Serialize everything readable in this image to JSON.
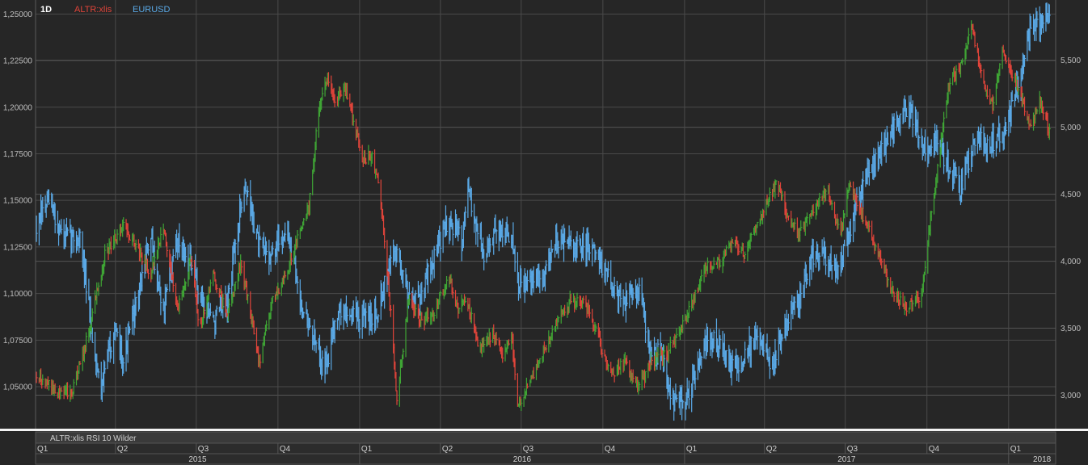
{
  "header": {
    "timeframe": "1D",
    "series_labels": [
      "ALTR:xlis",
      "EURUSD"
    ]
  },
  "indicator_panel": {
    "label": "ALTR:xlis RSI 10 Wilder"
  },
  "colors": {
    "background": "#262626",
    "grid": "#4a4a4a",
    "up": "#3fa535",
    "down": "#e0443a",
    "eurusd": "#5aa9e6",
    "altr_label": "#e0443a",
    "eurusd_label": "#5aa9e6"
  },
  "chart_data": {
    "type": "line",
    "style": "ohlc-bars",
    "timeframe": "1D",
    "x_quarters": [
      {
        "label": "Q1",
        "start": "2015-01-01"
      },
      {
        "label": "Q2",
        "start": "2015-04-01"
      },
      {
        "label": "Q3",
        "start": "2015-07-01"
      },
      {
        "label": "Q4",
        "start": "2015-10-01"
      },
      {
        "label": "Q1",
        "start": "2016-01-01"
      },
      {
        "label": "Q2",
        "start": "2016-04-01"
      },
      {
        "label": "Q3",
        "start": "2016-07-01"
      },
      {
        "label": "Q4",
        "start": "2016-10-01"
      },
      {
        "label": "Q1",
        "start": "2017-01-01"
      },
      {
        "label": "Q2",
        "start": "2017-04-01"
      },
      {
        "label": "Q3",
        "start": "2017-07-01"
      },
      {
        "label": "Q4",
        "start": "2017-10-01"
      },
      {
        "label": "Q1",
        "start": "2018-01-01"
      }
    ],
    "x_years": [
      {
        "label": "2015",
        "start": "2015-01-01",
        "end": "2016-01-01"
      },
      {
        "label": "2016",
        "start": "2016-01-01",
        "end": "2017-01-01"
      },
      {
        "label": "2017",
        "start": "2017-01-01",
        "end": "2018-01-01"
      },
      {
        "label": "2018",
        "start": "2018-01-01",
        "end": "2018-02-23"
      }
    ],
    "xlim": [
      "2015-01-01",
      "2018-02-23"
    ],
    "left_axis": {
      "series": "EURUSD",
      "ylim": [
        1.0275,
        1.2575
      ],
      "ticks": [
        1.05,
        1.075,
        1.1,
        1.125,
        1.15,
        1.175,
        1.2,
        1.225,
        1.25
      ],
      "tick_labels": [
        "1,05000",
        "1,07500",
        "1,10000",
        "1,12500",
        "1,15000",
        "1,17500",
        "1,20000",
        "1,22500",
        "1,25000"
      ]
    },
    "right_axis": {
      "series": "ALTR:xlis",
      "ylim": [
        2750,
        5950
      ],
      "ticks": [
        3000,
        3500,
        4000,
        4500,
        5000,
        5500
      ],
      "tick_labels": [
        "3,000",
        "3,500",
        "4,000",
        "4,500",
        "5,000",
        "5,500"
      ]
    },
    "grid": true,
    "series": [
      {
        "name": "ALTR:xlis",
        "axis": "right",
        "anchors": [
          [
            "2015-01-02",
            3150
          ],
          [
            "2015-01-20",
            3050
          ],
          [
            "2015-02-10",
            3000
          ],
          [
            "2015-03-01",
            3450
          ],
          [
            "2015-03-20",
            4050
          ],
          [
            "2015-04-10",
            4280
          ],
          [
            "2015-04-25",
            4100
          ],
          [
            "2015-05-10",
            3900
          ],
          [
            "2015-05-25",
            4250
          ],
          [
            "2015-06-10",
            3650
          ],
          [
            "2015-06-25",
            4000
          ],
          [
            "2015-07-05",
            3500
          ],
          [
            "2015-07-20",
            3900
          ],
          [
            "2015-08-05",
            3600
          ],
          [
            "2015-08-20",
            4000
          ],
          [
            "2015-09-10",
            3250
          ],
          [
            "2015-09-25",
            3700
          ],
          [
            "2015-10-10",
            3900
          ],
          [
            "2015-10-25",
            4200
          ],
          [
            "2015-11-05",
            4400
          ],
          [
            "2015-11-15",
            5100
          ],
          [
            "2015-11-25",
            5350
          ],
          [
            "2015-12-05",
            5200
          ],
          [
            "2015-12-15",
            5300
          ],
          [
            "2015-12-25",
            5050
          ],
          [
            "2016-01-05",
            4750
          ],
          [
            "2016-01-15",
            4800
          ],
          [
            "2016-01-25",
            4450
          ],
          [
            "2016-02-05",
            3600
          ],
          [
            "2016-02-12",
            2950
          ],
          [
            "2016-02-25",
            3700
          ],
          [
            "2016-03-10",
            3550
          ],
          [
            "2016-03-25",
            3600
          ],
          [
            "2016-04-10",
            3900
          ],
          [
            "2016-04-20",
            3650
          ],
          [
            "2016-05-01",
            3700
          ],
          [
            "2016-05-15",
            3350
          ],
          [
            "2016-05-30",
            3450
          ],
          [
            "2016-06-10",
            3300
          ],
          [
            "2016-06-20",
            3450
          ],
          [
            "2016-06-27",
            2920
          ],
          [
            "2016-07-10",
            3100
          ],
          [
            "2016-07-25",
            3300
          ],
          [
            "2016-08-10",
            3550
          ],
          [
            "2016-08-25",
            3700
          ],
          [
            "2016-09-10",
            3700
          ],
          [
            "2016-09-25",
            3450
          ],
          [
            "2016-10-10",
            3150
          ],
          [
            "2016-10-25",
            3250
          ],
          [
            "2016-11-10",
            3050
          ],
          [
            "2016-11-25",
            3250
          ],
          [
            "2016-12-10",
            3300
          ],
          [
            "2016-12-25",
            3450
          ],
          [
            "2017-01-10",
            3700
          ],
          [
            "2017-01-25",
            3950
          ],
          [
            "2017-02-10",
            4000
          ],
          [
            "2017-02-25",
            4150
          ],
          [
            "2017-03-10",
            4050
          ],
          [
            "2017-03-25",
            4300
          ],
          [
            "2017-04-05",
            4450
          ],
          [
            "2017-04-15",
            4600
          ],
          [
            "2017-04-25",
            4350
          ],
          [
            "2017-05-10",
            4200
          ],
          [
            "2017-05-25",
            4350
          ],
          [
            "2017-06-10",
            4550
          ],
          [
            "2017-06-25",
            4200
          ],
          [
            "2017-07-05",
            4550
          ],
          [
            "2017-07-20",
            4350
          ],
          [
            "2017-08-05",
            4100
          ],
          [
            "2017-08-20",
            3800
          ],
          [
            "2017-09-10",
            3650
          ],
          [
            "2017-09-25",
            3750
          ],
          [
            "2017-10-05",
            4300
          ],
          [
            "2017-10-15",
            4800
          ],
          [
            "2017-10-25",
            5300
          ],
          [
            "2017-11-10",
            5500
          ],
          [
            "2017-11-20",
            5750
          ],
          [
            "2017-12-05",
            5300
          ],
          [
            "2017-12-15",
            5150
          ],
          [
            "2017-12-25",
            5600
          ],
          [
            "2018-01-05",
            5400
          ],
          [
            "2018-01-15",
            5250
          ],
          [
            "2018-01-25",
            5000
          ],
          [
            "2018-02-05",
            5200
          ],
          [
            "2018-02-12",
            5050
          ],
          [
            "2018-02-16",
            4950
          ]
        ]
      },
      {
        "name": "EURUSD",
        "axis": "left",
        "anchors": [
          [
            "2015-01-02",
            1.135
          ],
          [
            "2015-01-15",
            1.15
          ],
          [
            "2015-02-01",
            1.13
          ],
          [
            "2015-02-20",
            1.13
          ],
          [
            "2015-03-05",
            1.08
          ],
          [
            "2015-03-15",
            1.05
          ],
          [
            "2015-03-30",
            1.08
          ],
          [
            "2015-04-10",
            1.065
          ],
          [
            "2015-04-25",
            1.095
          ],
          [
            "2015-05-10",
            1.13
          ],
          [
            "2015-05-25",
            1.09
          ],
          [
            "2015-06-10",
            1.13
          ],
          [
            "2015-06-25",
            1.115
          ],
          [
            "2015-07-05",
            1.1
          ],
          [
            "2015-07-20",
            1.085
          ],
          [
            "2015-08-05",
            1.095
          ],
          [
            "2015-08-24",
            1.16
          ],
          [
            "2015-09-10",
            1.125
          ],
          [
            "2015-09-25",
            1.12
          ],
          [
            "2015-10-10",
            1.135
          ],
          [
            "2015-10-25",
            1.1
          ],
          [
            "2015-11-10",
            1.075
          ],
          [
            "2015-11-25",
            1.06
          ],
          [
            "2015-12-05",
            1.09
          ],
          [
            "2015-12-20",
            1.09
          ],
          [
            "2016-01-05",
            1.085
          ],
          [
            "2016-01-20",
            1.09
          ],
          [
            "2016-02-10",
            1.125
          ],
          [
            "2016-02-25",
            1.1
          ],
          [
            "2016-03-10",
            1.1
          ],
          [
            "2016-03-25",
            1.12
          ],
          [
            "2016-04-10",
            1.14
          ],
          [
            "2016-04-25",
            1.13
          ],
          [
            "2016-05-03",
            1.155
          ],
          [
            "2016-05-20",
            1.12
          ],
          [
            "2016-06-05",
            1.135
          ],
          [
            "2016-06-20",
            1.13
          ],
          [
            "2016-06-27",
            1.105
          ],
          [
            "2016-07-10",
            1.105
          ],
          [
            "2016-07-25",
            1.11
          ],
          [
            "2016-08-10",
            1.13
          ],
          [
            "2016-08-25",
            1.125
          ],
          [
            "2016-09-10",
            1.125
          ],
          [
            "2016-09-25",
            1.12
          ],
          [
            "2016-10-10",
            1.105
          ],
          [
            "2016-10-25",
            1.095
          ],
          [
            "2016-11-10",
            1.105
          ],
          [
            "2016-11-25",
            1.065
          ],
          [
            "2016-12-05",
            1.07
          ],
          [
            "2016-12-20",
            1.04
          ],
          [
            "2017-01-05",
            1.045
          ],
          [
            "2017-01-20",
            1.07
          ],
          [
            "2017-02-05",
            1.075
          ],
          [
            "2017-02-25",
            1.06
          ],
          [
            "2017-03-10",
            1.065
          ],
          [
            "2017-03-25",
            1.08
          ],
          [
            "2017-04-10",
            1.06
          ],
          [
            "2017-04-24",
            1.085
          ],
          [
            "2017-05-10",
            1.095
          ],
          [
            "2017-05-25",
            1.12
          ],
          [
            "2017-06-10",
            1.12
          ],
          [
            "2017-06-25",
            1.115
          ],
          [
            "2017-07-10",
            1.14
          ],
          [
            "2017-07-25",
            1.165
          ],
          [
            "2017-08-10",
            1.175
          ],
          [
            "2017-08-25",
            1.19
          ],
          [
            "2017-09-10",
            1.2
          ],
          [
            "2017-09-25",
            1.18
          ],
          [
            "2017-10-10",
            1.18
          ],
          [
            "2017-10-25",
            1.17
          ],
          [
            "2017-11-07",
            1.155
          ],
          [
            "2017-11-25",
            1.185
          ],
          [
            "2017-12-10",
            1.18
          ],
          [
            "2017-12-25",
            1.185
          ],
          [
            "2018-01-05",
            1.2
          ],
          [
            "2018-01-15",
            1.22
          ],
          [
            "2018-01-25",
            1.24
          ],
          [
            "2018-02-05",
            1.245
          ],
          [
            "2018-02-16",
            1.25
          ]
        ]
      }
    ]
  }
}
